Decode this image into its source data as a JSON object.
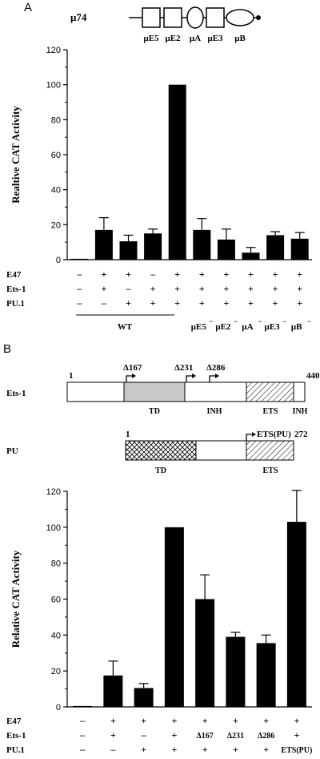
{
  "panel_a": {
    "label": "A",
    "construct_name": "μ74",
    "elements": [
      {
        "name": "μE5",
        "shape": "box"
      },
      {
        "name": "μE2",
        "shape": "box"
      },
      {
        "name": "μA",
        "shape": "ellipse"
      },
      {
        "name": "μE3",
        "shape": "box"
      },
      {
        "name": "μB",
        "shape": "ellipse"
      }
    ],
    "row_labels": [
      "E47",
      "Ets-1",
      "PU.1"
    ],
    "rows": [
      [
        "–",
        "+",
        "+",
        "–",
        "+",
        "+",
        "+",
        "+",
        "+",
        "+"
      ],
      [
        "–",
        "+",
        "–",
        "+",
        "+",
        "+",
        "+",
        "+",
        "+",
        "+"
      ],
      [
        "–",
        "–",
        "+",
        "+",
        "+",
        "+",
        "+",
        "+",
        "+",
        "+"
      ]
    ],
    "group_wt_label": "WT",
    "mutant_labels": [
      "μE5",
      "μE2",
      "μA",
      "μE3",
      "μB"
    ],
    "mutant_superscript": "−"
  },
  "panel_b": {
    "label": "B",
    "ets1": {
      "name": "Ets-1",
      "start": "1",
      "end": "440",
      "domains": [
        "TD",
        "INH",
        "ETS",
        "INH"
      ],
      "deletions": [
        "Δ167",
        "Δ231",
        "Δ286"
      ]
    },
    "pu": {
      "name": "PU",
      "start": "1",
      "end": "272",
      "domains": [
        "TD",
        "ETS"
      ],
      "fragment": "ETS(PU)"
    },
    "row_labels": [
      "E47",
      "Ets-1",
      "PU.1"
    ],
    "rows": [
      [
        "–",
        "+",
        "+",
        "+",
        "+",
        "+",
        "+",
        "+"
      ],
      [
        "–",
        "+",
        "–",
        "+",
        "Δ167",
        "Δ231",
        "Δ286",
        "+"
      ],
      [
        "–",
        "–",
        "+",
        "+",
        "+",
        "+",
        "+",
        "ETS(PU)"
      ]
    ]
  },
  "chart_data": [
    {
      "type": "bar",
      "panel": "A",
      "ylabel": "Realtive CAT Activity",
      "ylim": [
        0,
        120
      ],
      "yticks": [
        "0",
        "20",
        "40",
        "60",
        "80",
        "100",
        "120"
      ],
      "values": [
        0.5,
        17,
        10.5,
        15,
        100,
        17,
        11.5,
        4,
        14,
        12
      ],
      "errors": [
        0,
        7,
        3.5,
        2.5,
        0,
        6.5,
        6,
        3,
        2,
        3.5
      ],
      "bar_color": "#000000"
    },
    {
      "type": "bar",
      "panel": "B",
      "ylabel": "Relative CAT Activity",
      "ylim": [
        0,
        120
      ],
      "yticks": [
        "0",
        "20",
        "40",
        "60",
        "80",
        "100",
        "120"
      ],
      "values": [
        0.5,
        17.5,
        10.5,
        100,
        60,
        39,
        35.5,
        103
      ],
      "errors": [
        0,
        8,
        2.5,
        0,
        13.5,
        2.5,
        4.5,
        17.5
      ],
      "bar_color": "#000000"
    }
  ]
}
